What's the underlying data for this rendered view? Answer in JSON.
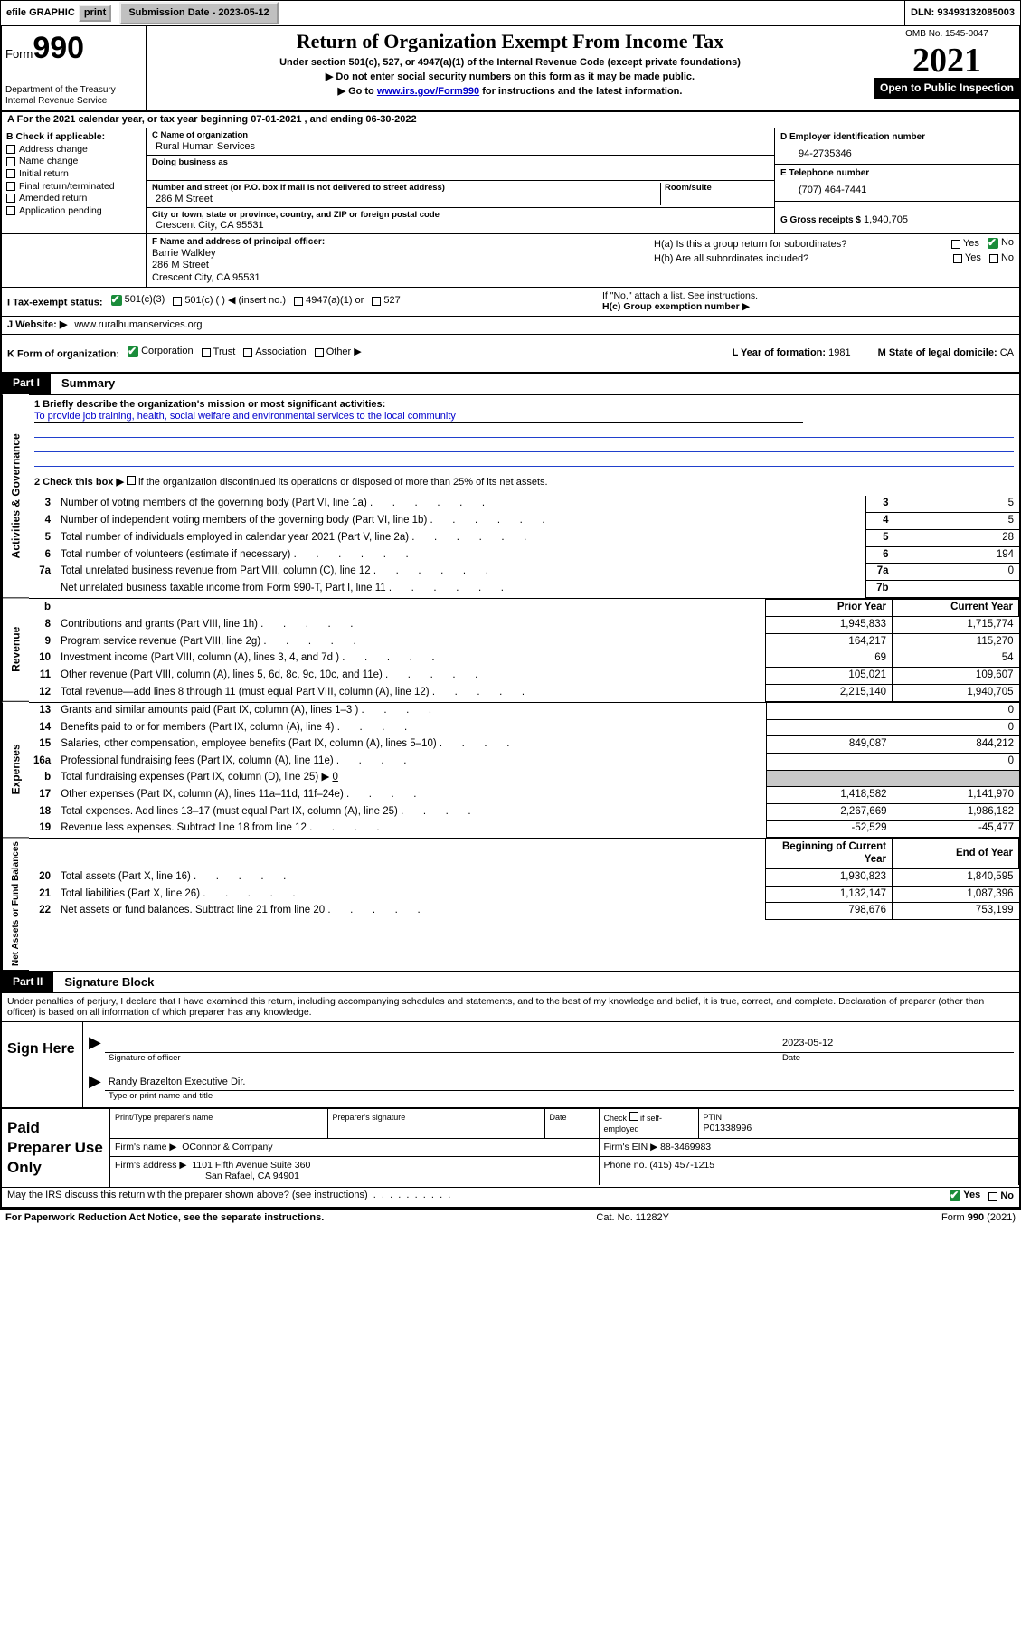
{
  "colors": {
    "link": "#0000cc",
    "check_green": "#1a8c3a",
    "check_blue": "#0060d0",
    "grey_cell": "#c8c8c8",
    "black": "#000000",
    "white": "#ffffff",
    "rule_blue": "#2040cc"
  },
  "topbar": {
    "efile": "efile GRAPHIC",
    "print": "print",
    "submission_label": "Submission Date -",
    "submission_date": "2023-05-12",
    "dln_label": "DLN:",
    "dln": "93493132085003"
  },
  "header": {
    "form_word": "Form",
    "form_number": "990",
    "dept": "Department of the Treasury",
    "irs": "Internal Revenue Service",
    "title": "Return of Organization Exempt From Income Tax",
    "subtitle1": "Under section 501(c), 527, or 4947(a)(1) of the Internal Revenue Code (except private foundations)",
    "subtitle2": "▶ Do not enter social security numbers on this form as it may be made public.",
    "subtitle3_pre": "▶ Go to ",
    "subtitle3_link": "www.irs.gov/Form990",
    "subtitle3_post": " for instructions and the latest information.",
    "omb": "OMB No. 1545-0047",
    "year": "2021",
    "open": "Open to Public Inspection"
  },
  "sectionA": {
    "prefix": "A For the 2021 calendar year, or tax year beginning ",
    "begin": "07-01-2021",
    "mid": "   , and ending ",
    "end": "06-30-2022"
  },
  "sectionB": {
    "label": "B Check if applicable:",
    "items": [
      "Address change",
      "Name change",
      "Initial return",
      "Final return/terminated",
      "Amended return",
      "Application pending"
    ]
  },
  "sectionC": {
    "name_label": "C Name of organization",
    "name": "Rural Human Services",
    "dba_label": "Doing business as",
    "dba": "",
    "addr_label": "Number and street (or P.O. box if mail is not delivered to street address)",
    "room_label": "Room/suite",
    "addr": "286 M Street",
    "city_label": "City or town, state or province, country, and ZIP or foreign postal code",
    "city": "Crescent City, CA  95531"
  },
  "sectionD": {
    "label": "D Employer identification number",
    "value": "94-2735346"
  },
  "sectionE": {
    "label": "E Telephone number",
    "value": "(707) 464-7441"
  },
  "sectionG": {
    "label": "G Gross receipts $",
    "value": "1,940,705"
  },
  "sectionF": {
    "label": "F Name and address of principal officer:",
    "name": "Barrie Walkley",
    "addr1": "286 M Street",
    "addr2": "Crescent City, CA  95531"
  },
  "sectionH": {
    "ha": "H(a)  Is this a group return for subordinates?",
    "ha_yes": "Yes",
    "ha_no": "No",
    "hb": "H(b)  Are all subordinates included?",
    "hb_yes": "Yes",
    "hb_no": "No",
    "hb_note": "If \"No,\" attach a list. See instructions.",
    "hc": "H(c)  Group exemption number ▶"
  },
  "sectionI": {
    "label": "I   Tax-exempt status:",
    "opt1": "501(c)(3)",
    "opt2": "501(c) (  ) ◀ (insert no.)",
    "opt3": "4947(a)(1) or",
    "opt4": "527"
  },
  "sectionJ": {
    "label": "J   Website: ▶",
    "value": "www.ruralhumanservices.org"
  },
  "sectionK": {
    "label": "K Form of organization:",
    "opts": [
      "Corporation",
      "Trust",
      "Association",
      "Other ▶"
    ]
  },
  "sectionL": {
    "label": "L Year of formation:",
    "value": "1981"
  },
  "sectionM": {
    "label": "M State of legal domicile:",
    "value": "CA"
  },
  "partI": {
    "label": "Part I",
    "title": "Summary"
  },
  "ag": {
    "vlabel": "Activities & Governance",
    "l1_label": "1   Briefly describe the organization's mission or most significant activities:",
    "l1_text": "To provide job training, health, social welfare and environmental services to the local community",
    "l2": "2   Check this box ▶",
    "l2_post": " if the organization discontinued its operations or disposed of more than 25% of its net assets.",
    "rows": [
      {
        "n": "3",
        "desc": "Number of voting members of the governing body (Part VI, line 1a)",
        "box": "3",
        "val": "5"
      },
      {
        "n": "4",
        "desc": "Number of independent voting members of the governing body (Part VI, line 1b)",
        "box": "4",
        "val": "5"
      },
      {
        "n": "5",
        "desc": "Total number of individuals employed in calendar year 2021 (Part V, line 2a)",
        "box": "5",
        "val": "28"
      },
      {
        "n": "6",
        "desc": "Total number of volunteers (estimate if necessary)",
        "box": "6",
        "val": "194"
      },
      {
        "n": "7a",
        "desc": "Total unrelated business revenue from Part VIII, column (C), line 12",
        "box": "7a",
        "val": "0"
      },
      {
        "n": "",
        "desc": "Net unrelated business taxable income from Form 990-T, Part I, line 11",
        "box": "7b",
        "val": ""
      }
    ]
  },
  "rev": {
    "vlabel": "Revenue",
    "hdr_b": "b",
    "hdr_prior": "Prior Year",
    "hdr_curr": "Current Year",
    "rows": [
      {
        "n": "8",
        "desc": "Contributions and grants (Part VIII, line 1h)",
        "py": "1,945,833",
        "cy": "1,715,774"
      },
      {
        "n": "9",
        "desc": "Program service revenue (Part VIII, line 2g)",
        "py": "164,217",
        "cy": "115,270"
      },
      {
        "n": "10",
        "desc": "Investment income (Part VIII, column (A), lines 3, 4, and 7d )",
        "py": "69",
        "cy": "54"
      },
      {
        "n": "11",
        "desc": "Other revenue (Part VIII, column (A), lines 5, 6d, 8c, 9c, 10c, and 11e)",
        "py": "105,021",
        "cy": "109,607"
      },
      {
        "n": "12",
        "desc": "Total revenue—add lines 8 through 11 (must equal Part VIII, column (A), line 12)",
        "py": "2,215,140",
        "cy": "1,940,705"
      }
    ]
  },
  "exp": {
    "vlabel": "Expenses",
    "rows": [
      {
        "n": "13",
        "desc": "Grants and similar amounts paid (Part IX, column (A), lines 1–3 )",
        "py": "",
        "cy": "0"
      },
      {
        "n": "14",
        "desc": "Benefits paid to or for members (Part IX, column (A), line 4)",
        "py": "",
        "cy": "0"
      },
      {
        "n": "15",
        "desc": "Salaries, other compensation, employee benefits (Part IX, column (A), lines 5–10)",
        "py": "849,087",
        "cy": "844,212"
      },
      {
        "n": "16a",
        "desc": "Professional fundraising fees (Part IX, column (A), line 11e)",
        "py": "",
        "cy": "0"
      },
      {
        "n": "b",
        "desc": "Total fundraising expenses (Part IX, column (D), line 25) ▶",
        "inline": "0",
        "py": "GREY",
        "cy": "GREY"
      },
      {
        "n": "17",
        "desc": "Other expenses (Part IX, column (A), lines 11a–11d, 11f–24e)",
        "py": "1,418,582",
        "cy": "1,141,970"
      },
      {
        "n": "18",
        "desc": "Total expenses. Add lines 13–17 (must equal Part IX, column (A), line 25)",
        "py": "2,267,669",
        "cy": "1,986,182"
      },
      {
        "n": "19",
        "desc": "Revenue less expenses. Subtract line 18 from line 12",
        "py": "-52,529",
        "cy": "-45,477"
      }
    ]
  },
  "net": {
    "vlabel": "Net Assets or Fund Balances",
    "hdr_beg": "Beginning of Current Year",
    "hdr_end": "End of Year",
    "rows": [
      {
        "n": "20",
        "desc": "Total assets (Part X, line 16)",
        "py": "1,930,823",
        "cy": "1,840,595"
      },
      {
        "n": "21",
        "desc": "Total liabilities (Part X, line 26)",
        "py": "1,132,147",
        "cy": "1,087,396"
      },
      {
        "n": "22",
        "desc": "Net assets or fund balances. Subtract line 21 from line 20",
        "py": "798,676",
        "cy": "753,199"
      }
    ]
  },
  "partII": {
    "label": "Part II",
    "title": "Signature Block"
  },
  "sig": {
    "declare": "Under penalties of perjury, I declare that I have examined this return, including accompanying schedules and statements, and to the best of my knowledge and belief, it is true, correct, and complete. Declaration of preparer (other than officer) is based on all information of which preparer has any knowledge.",
    "sign_here": "Sign Here",
    "sig_officer_lbl": "Signature of officer",
    "date_lbl": "Date",
    "date_val": "2023-05-12",
    "officer_name": "Randy Brazelton  Executive Dir.",
    "officer_sub": "Type or print name and title"
  },
  "prep": {
    "label": "Paid Preparer Use Only",
    "c1": "Print/Type preparer's name",
    "c2": "Preparer's signature",
    "c3": "Date",
    "c4_pre": "Check",
    "c4_post": "if self-employed",
    "c5_lbl": "PTIN",
    "c5_val": "P01338996",
    "firm_name_lbl": "Firm's name    ▶",
    "firm_name": "OConnor & Company",
    "firm_ein_lbl": "Firm's EIN ▶",
    "firm_ein": "88-3469983",
    "firm_addr_lbl": "Firm's address ▶",
    "firm_addr1": "1101 Fifth Avenue Suite 360",
    "firm_addr2": "San Rafael, CA  94901",
    "phone_lbl": "Phone no.",
    "phone": "(415) 457-1215"
  },
  "discuss": {
    "text": "May the IRS discuss this return with the preparer shown above? (see instructions)",
    "yes": "Yes",
    "no": "No"
  },
  "footer": {
    "left": "For Paperwork Reduction Act Notice, see the separate instructions.",
    "mid": "Cat. No. 11282Y",
    "right_pre": "Form ",
    "right_form": "990",
    "right_post": " (2021)"
  }
}
